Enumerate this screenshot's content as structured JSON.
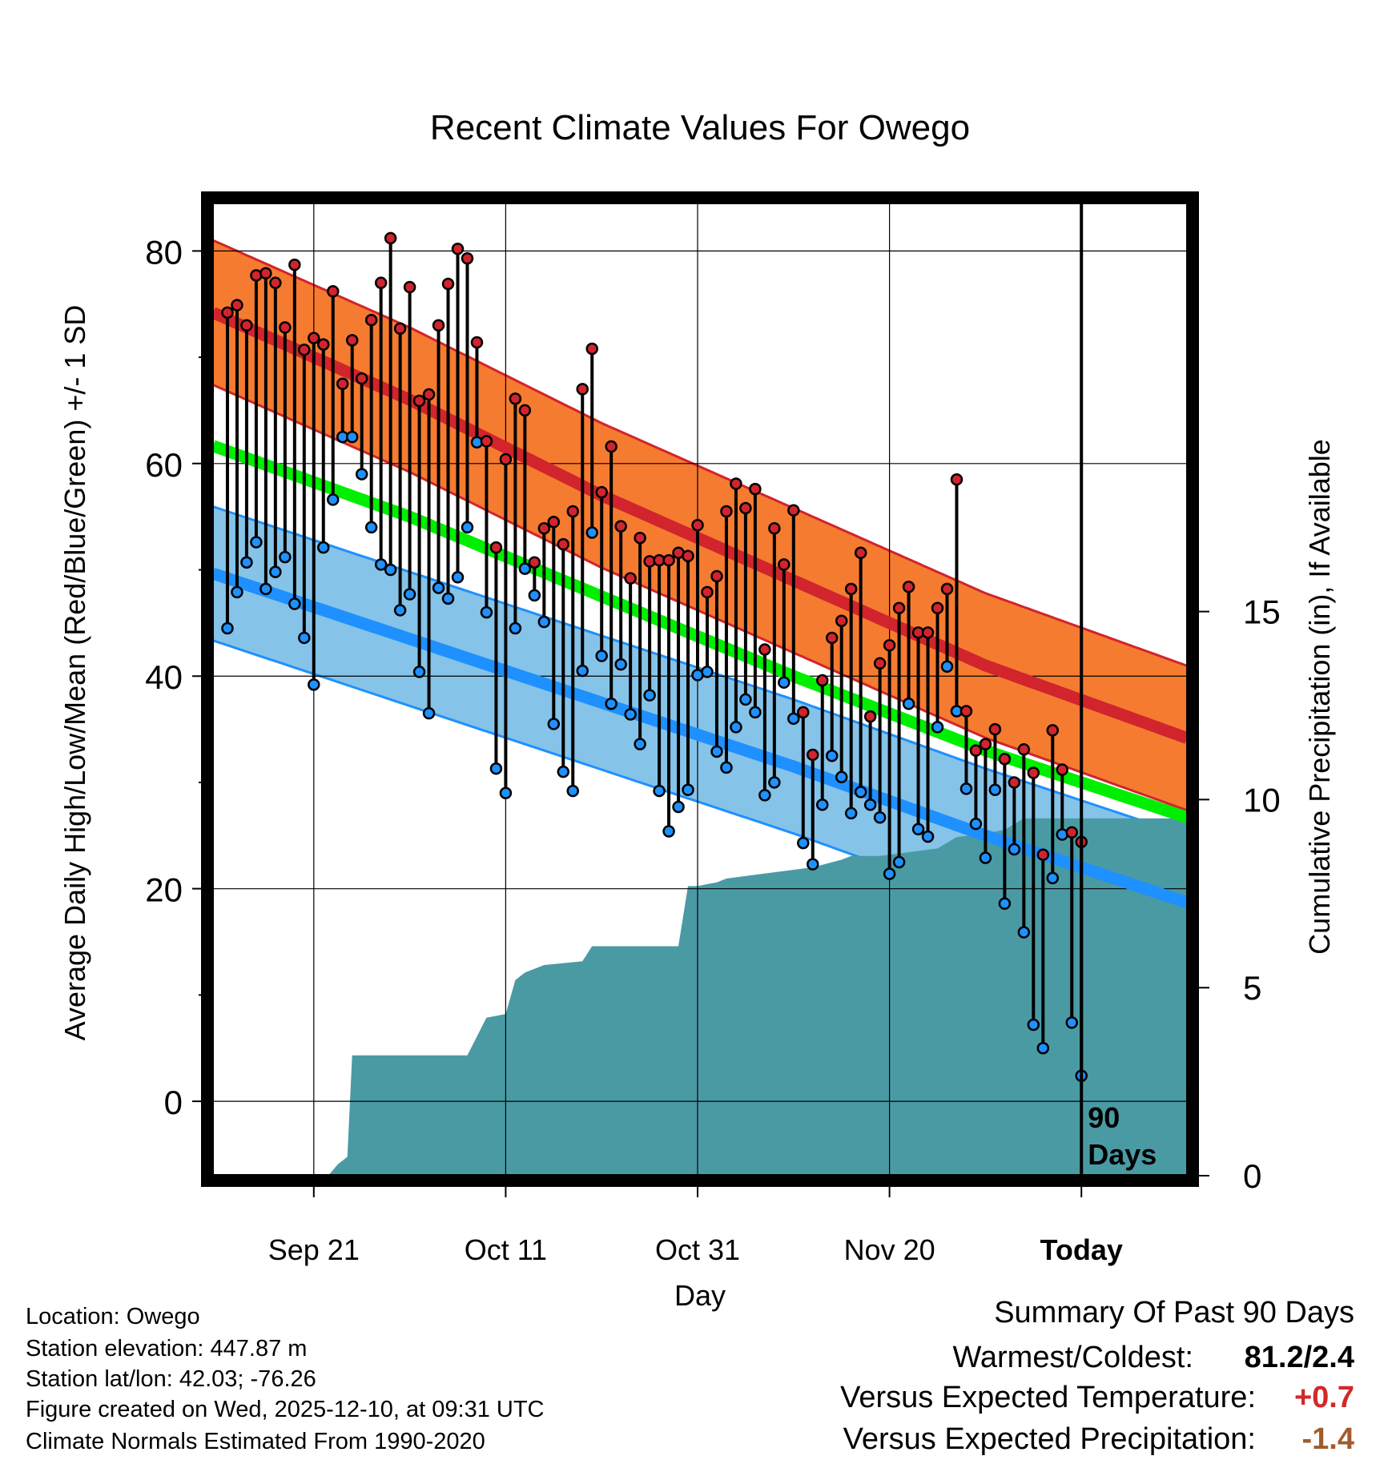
{
  "chart_data": {
    "type": "line",
    "title": "Recent Climate Values For Owego",
    "xlabel": "Day",
    "ylabel": "Average Daily High/Low/Mean (Red/Blue/Green) +/- 1 SD",
    "y2label": "Cumulative Precipitation (in), If Available",
    "ylim": [
      -7,
      85
    ],
    "y2lim": [
      0,
      26
    ],
    "xlim": [
      -0.5,
      101
    ],
    "yticks": [
      0,
      20,
      40,
      60,
      80
    ],
    "y2ticks": [
      0,
      5,
      10,
      15
    ],
    "xticks": [
      {
        "day": 10,
        "label": "Sep 21"
      },
      {
        "day": 30,
        "label": "Oct 11"
      },
      {
        "day": 50,
        "label": "Oct 31"
      },
      {
        "day": 70,
        "label": "Nov 20"
      },
      {
        "day": 90,
        "label": "Today"
      }
    ],
    "today_day": 90,
    "today_label": [
      "90",
      "Days"
    ],
    "normals": {
      "days": [
        0,
        20,
        40,
        60,
        80,
        100
      ],
      "high_mean": [
        74,
        66,
        57,
        49,
        41,
        34.5
      ],
      "high_sd": 6.8,
      "low_mean": [
        49.5,
        43.5,
        37.5,
        31.5,
        25,
        19
      ],
      "low_sd": 6.3,
      "mean_mean": [
        61.5,
        55,
        47.5,
        40,
        33,
        27
      ]
    },
    "series": [
      {
        "name": "Daily High",
        "values": [
          74.2,
          74.9,
          73.0,
          77.7,
          77.9,
          77.0,
          72.8,
          78.7,
          70.7,
          71.8,
          71.2,
          76.2,
          67.5,
          71.6,
          68.0,
          73.5,
          77.0,
          81.2,
          72.7,
          76.6,
          65.9,
          66.5,
          73.0,
          76.9,
          80.2,
          79.3,
          71.4,
          62.1,
          52.1,
          60.4,
          66.1,
          65.0,
          50.7,
          53.9,
          54.5,
          52.4,
          55.5,
          67.0,
          70.8,
          57.3,
          61.6,
          54.1,
          49.2,
          53.0,
          50.8,
          50.9,
          50.9,
          51.6,
          51.3,
          54.2,
          47.9,
          49.4,
          55.5,
          58.1,
          55.8,
          57.6,
          42.5,
          53.9,
          50.5,
          55.6,
          36.6,
          32.6,
          39.6,
          43.6,
          45.2,
          48.2,
          51.6,
          36.2,
          41.2,
          42.9,
          46.4,
          48.4,
          44.1,
          44.1,
          46.4,
          48.2,
          58.5,
          36.7,
          33.0,
          33.6,
          35.0,
          32.2,
          30.0,
          33.1,
          30.9,
          23.2,
          34.9,
          31.2,
          25.3,
          24.4
        ]
      },
      {
        "name": "Daily Low",
        "values": [
          44.5,
          47.9,
          50.7,
          52.6,
          48.2,
          49.8,
          51.2,
          46.8,
          43.6,
          39.2,
          52.1,
          56.6,
          62.5,
          62.5,
          59.0,
          54.0,
          50.5,
          50.0,
          46.2,
          47.7,
          40.4,
          36.5,
          48.3,
          47.3,
          49.3,
          54.0,
          62.0,
          46.0,
          31.3,
          29.0,
          44.5,
          50.1,
          47.6,
          45.1,
          35.5,
          31.0,
          29.2,
          40.5,
          53.5,
          41.9,
          37.4,
          41.1,
          36.4,
          33.6,
          38.2,
          29.2,
          25.4,
          27.7,
          29.3,
          40.1,
          40.4,
          32.9,
          31.4,
          35.2,
          37.8,
          36.6,
          28.8,
          30.0,
          39.4,
          36.0,
          24.3,
          22.3,
          27.9,
          32.5,
          30.5,
          27.1,
          29.1,
          27.9,
          26.7,
          21.4,
          22.5,
          37.4,
          25.6,
          24.9,
          35.2,
          40.9,
          36.7,
          29.4,
          26.1,
          22.9,
          29.3,
          18.6,
          23.7,
          15.9,
          7.2,
          5.0,
          21.0,
          25.1,
          7.4,
          2.4
        ]
      },
      {
        "name": "Cumulative Precipitation",
        "x": [
          0,
          11.5,
          12.5,
          13.5,
          14,
          26,
          28,
          30,
          31,
          32,
          34,
          38,
          39,
          48,
          49,
          50,
          52,
          53,
          56,
          59,
          62,
          65,
          66,
          69,
          72,
          75,
          77,
          80,
          82,
          84,
          101
        ],
        "values": [
          0,
          0,
          0.3,
          0.5,
          3.2,
          3.2,
          4.2,
          4.3,
          5.2,
          5.4,
          5.6,
          5.7,
          6.1,
          6.1,
          7.7,
          7.7,
          7.8,
          7.9,
          8.0,
          8.1,
          8.2,
          8.4,
          8.5,
          8.5,
          8.6,
          8.7,
          9.0,
          9.1,
          9.2,
          9.5,
          9.5
        ]
      }
    ]
  },
  "footer": {
    "location": "Location: Owego",
    "elevation": "Station elevation: 447.87 m",
    "latlon": "Station lat/lon: 42.03; -76.26",
    "created": "Figure created on Wed, 2025-12-10, at 09:31 UTC",
    "normals": "Climate Normals Estimated From 1990-2020"
  },
  "summary": {
    "title": "Summary Of Past 90 Days",
    "warm_label": "Warmest/Coldest:",
    "warm_value": "81.2/2.4",
    "temp_label": "Versus Expected Temperature:",
    "temp_value": "+0.7",
    "precip_label": "Versus Expected Precipitation:",
    "precip_value": "-1.4"
  },
  "colors": {
    "high_band": "#f57b30",
    "high_line": "#d1242d",
    "low_band": "#86c3e8",
    "low_line": "#1e90ff",
    "mean_line": "#00ee00",
    "precip": "#4a9aa4",
    "overlap": "#9b1414",
    "temp_value": "#d3282a",
    "precip_value": "#a15c2e"
  }
}
